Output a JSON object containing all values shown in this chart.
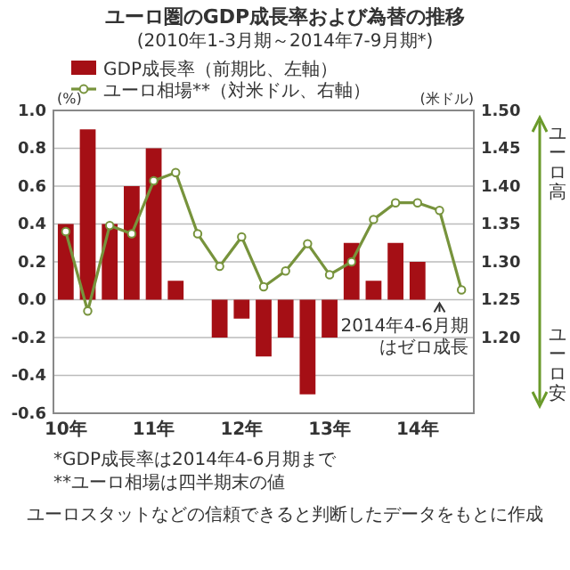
{
  "chart_data": {
    "type": "bar",
    "title": "ユーロ圏のGDP成長率および為替の推移",
    "subtitle": "(2010年1-3月期～2014年7-9月期*)",
    "ylabel": "(%)",
    "y2label": "(米ドル)",
    "categories": [
      "10年",
      null,
      null,
      null,
      "11年",
      null,
      null,
      null,
      "12年",
      null,
      null,
      null,
      "13年",
      null,
      null,
      null,
      "14年",
      null,
      null
    ],
    "series": [
      {
        "name": "GDP成長率（前期比、左軸）",
        "color": "#a50f15",
        "values": [
          0.4,
          0.9,
          0.4,
          0.6,
          0.8,
          0.1,
          0,
          -0.2,
          -0.1,
          -0.3,
          -0.2,
          -0.5,
          -0.2,
          0.3,
          0.1,
          0.3,
          0.2,
          0,
          null
        ]
      },
      {
        "name": "ユーロ相場**（対米ドル、右軸）",
        "type": "line",
        "axis": "y2",
        "color": "#77933c",
        "values": [
          1.34,
          1.235,
          1.348,
          1.337,
          1.407,
          1.418,
          1.337,
          1.294,
          1.333,
          1.267,
          1.288,
          1.324,
          1.283,
          1.3,
          1.356,
          1.378,
          1.378,
          1.368,
          1.263
        ]
      }
    ],
    "ylim": [
      -0.6,
      1.0
    ],
    "yticks": [
      {
        "value": -0.6,
        "label": "-0.6"
      },
      {
        "value": -0.4,
        "label": "-0.4"
      },
      {
        "value": -0.2,
        "label": "-0.2"
      },
      {
        "value": 0,
        "label": "0.0"
      },
      {
        "value": 0.2,
        "label": "0.2"
      },
      {
        "value": 0.4,
        "label": "0.4"
      },
      {
        "value": 0.6,
        "label": "0.6"
      },
      {
        "value": 0.8,
        "label": "0.8"
      },
      {
        "value": 1,
        "label": "1.0"
      }
    ],
    "y2lim": [
      1.1,
      1.5
    ],
    "y2ticks": [
      {
        "value": 1.2,
        "label": "1.20"
      },
      1.25,
      {
        "value": 1.3,
        "label": "1.30"
      },
      1.35,
      {
        "value": 1.4,
        "label": "1.40"
      },
      1.45,
      {
        "value": 1.5,
        "label": "1.50"
      }
    ],
    "tick_labels": true,
    "grid": "y",
    "legend": "top",
    "marker": "circle",
    "line_style": "solid",
    "annotations": [
      "*GDP成長率は2014年4-6月期まで",
      "**ユーロ相場は四半期末の値",
      "2014年4-6月期はゼロ成長",
      "ユーロ高",
      "ユーロ安",
      "ユーロスタットなどの信頼できると判断したデータをもとに作成"
    ]
  }
}
